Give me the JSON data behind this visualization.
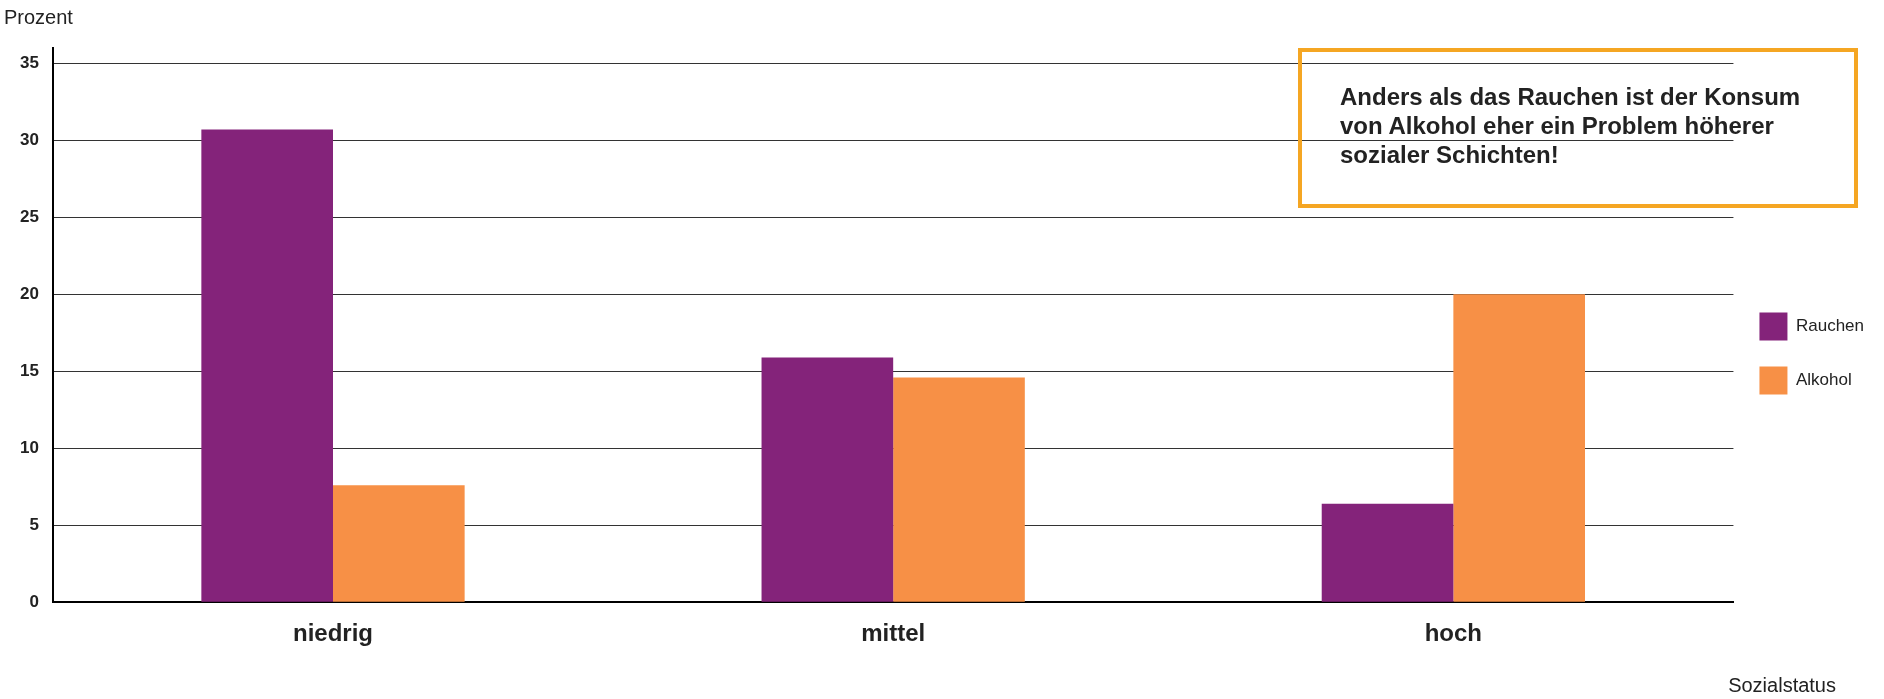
{
  "chart_data": {
    "type": "bar",
    "xlabel": "Sozialstatus",
    "ylabel": "Prozent",
    "categories": [
      "niedrig",
      "mittel",
      "hoch"
    ],
    "series": [
      {
        "name": "Rauchen",
        "color": "#84237a",
        "values": [
          30.7,
          15.9,
          6.4
        ]
      },
      {
        "name": "Alkohol",
        "color": "#f79046",
        "values": [
          7.6,
          14.6,
          20
        ]
      }
    ],
    "ylim": [
      0,
      36
    ],
    "yticks": [
      0,
      5,
      10,
      15,
      20,
      25,
      30,
      35
    ],
    "grid": "y",
    "legend": "right",
    "annotations": [
      "Anders als das Rauchen ist der Konsum von Alkohol eher ein Problem höherer sozialer Schichten!"
    ]
  }
}
